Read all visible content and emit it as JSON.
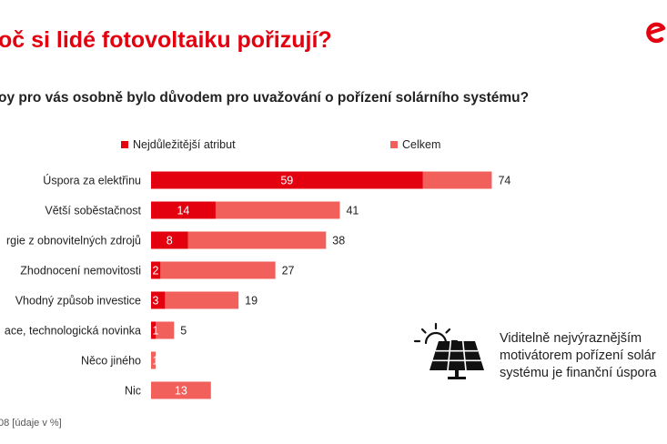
{
  "page": {
    "title": "oč si lidé fotovoltaiku pořizují?",
    "question": "oy pro vás osobně bylo důvodem pro uvažování o pořízení solárního systému?",
    "footnote": "08 [údaje v %]",
    "logo": "e-logo-icon",
    "callout": {
      "icon": "solar-panel-sun-icon",
      "lines": [
        "Viditelně nejvýraznějším",
        "motivátorem pořízení solár",
        "systému je finanční úspora"
      ]
    }
  },
  "colors": {
    "primary": "#e3000f",
    "secondary": "#f2605c",
    "title": "#e3000f"
  },
  "chart_data": {
    "type": "bar",
    "orientation": "horizontal",
    "stacked": "overlay",
    "categories": [
      "Úspora za elektřinu",
      "Větší soběstačnost",
      "rgie z obnovitelných zdrojů",
      "Zhodnocení nemovitosti",
      "Vhodný způsob investice",
      "ace, technologická novinka",
      "Něco jiného",
      "Nic"
    ],
    "series": [
      {
        "name": "Nejdůležitější atribut",
        "color": "#e3000f",
        "values": [
          59,
          14,
          8,
          2,
          3,
          1,
          0,
          0
        ]
      },
      {
        "name": "Celkem",
        "color": "#f2605c",
        "values": [
          74,
          41,
          38,
          27,
          19,
          5,
          1,
          13
        ]
      }
    ],
    "primary_labels": [
      "59",
      "14",
      "8",
      "2",
      "3",
      "1",
      "",
      ""
    ],
    "total_labels": [
      "74",
      "41",
      "38",
      "27",
      "19",
      "5",
      "",
      ""
    ],
    "inside_total_labels": [
      "",
      "",
      "",
      "",
      "",
      "",
      "1",
      "13"
    ],
    "xlim": [
      0,
      74
    ],
    "legend_position": "top",
    "grid": false
  }
}
